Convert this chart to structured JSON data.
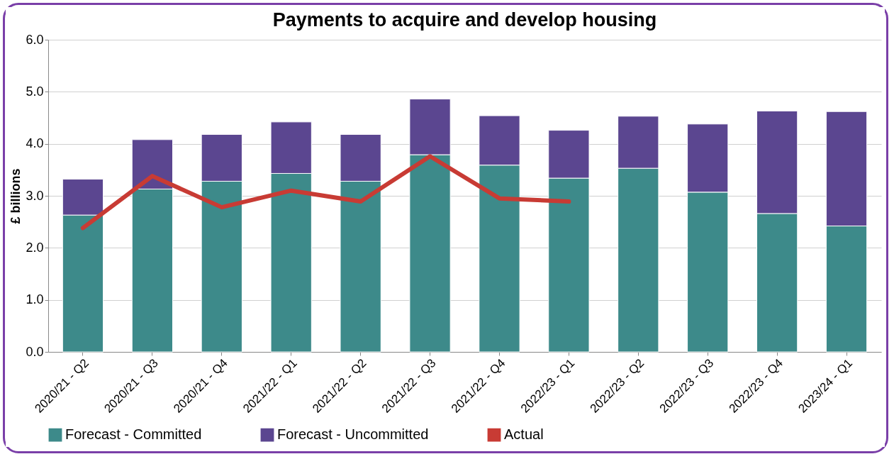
{
  "chart_data": {
    "type": "bar",
    "title": "Payments to acquire and develop housing",
    "ylabel": "£ billions",
    "categories": [
      "2020/21 - Q2",
      "2020/21 - Q3",
      "2020/21 - Q4",
      "2021/22 - Q1",
      "2021/22 - Q2",
      "2021/22 - Q3",
      "2021/22 - Q4",
      "2022/23 - Q1",
      "2022/23 - Q2",
      "2022/23 - Q3",
      "2022/23 - Q4",
      "2023/24 - Q1"
    ],
    "stacked": true,
    "ylim": [
      0,
      6
    ],
    "yticks": [
      {
        "value": 0,
        "label": "0.0"
      },
      {
        "value": 1,
        "label": "1.0"
      },
      {
        "value": 2,
        "label": "2.0"
      },
      {
        "value": 3,
        "label": "3.0"
      },
      {
        "value": 4,
        "label": "4.0"
      },
      {
        "value": 5,
        "label": "5.0"
      },
      {
        "value": 6,
        "label": "6.0"
      }
    ],
    "grid": "y",
    "legend": "bottom",
    "series": [
      {
        "name": "Forecast - Committed",
        "color": "#3d8a8a",
        "values": [
          2.63,
          3.13,
          3.28,
          3.43,
          3.28,
          3.79,
          3.59,
          3.34,
          3.53,
          3.07,
          2.66,
          2.42
        ]
      },
      {
        "name": "Forecast - Uncommitted",
        "color": "#5b4690",
        "values": [
          0.69,
          0.95,
          0.9,
          0.99,
          0.9,
          1.07,
          0.95,
          0.92,
          1.0,
          1.31,
          1.97,
          2.2
        ]
      },
      {
        "name": "Actual",
        "type": "line",
        "color": "#c83b34",
        "values": [
          2.38,
          3.38,
          2.78,
          3.1,
          2.89,
          3.76,
          2.95,
          2.89,
          null,
          null,
          null,
          null
        ]
      }
    ]
  }
}
